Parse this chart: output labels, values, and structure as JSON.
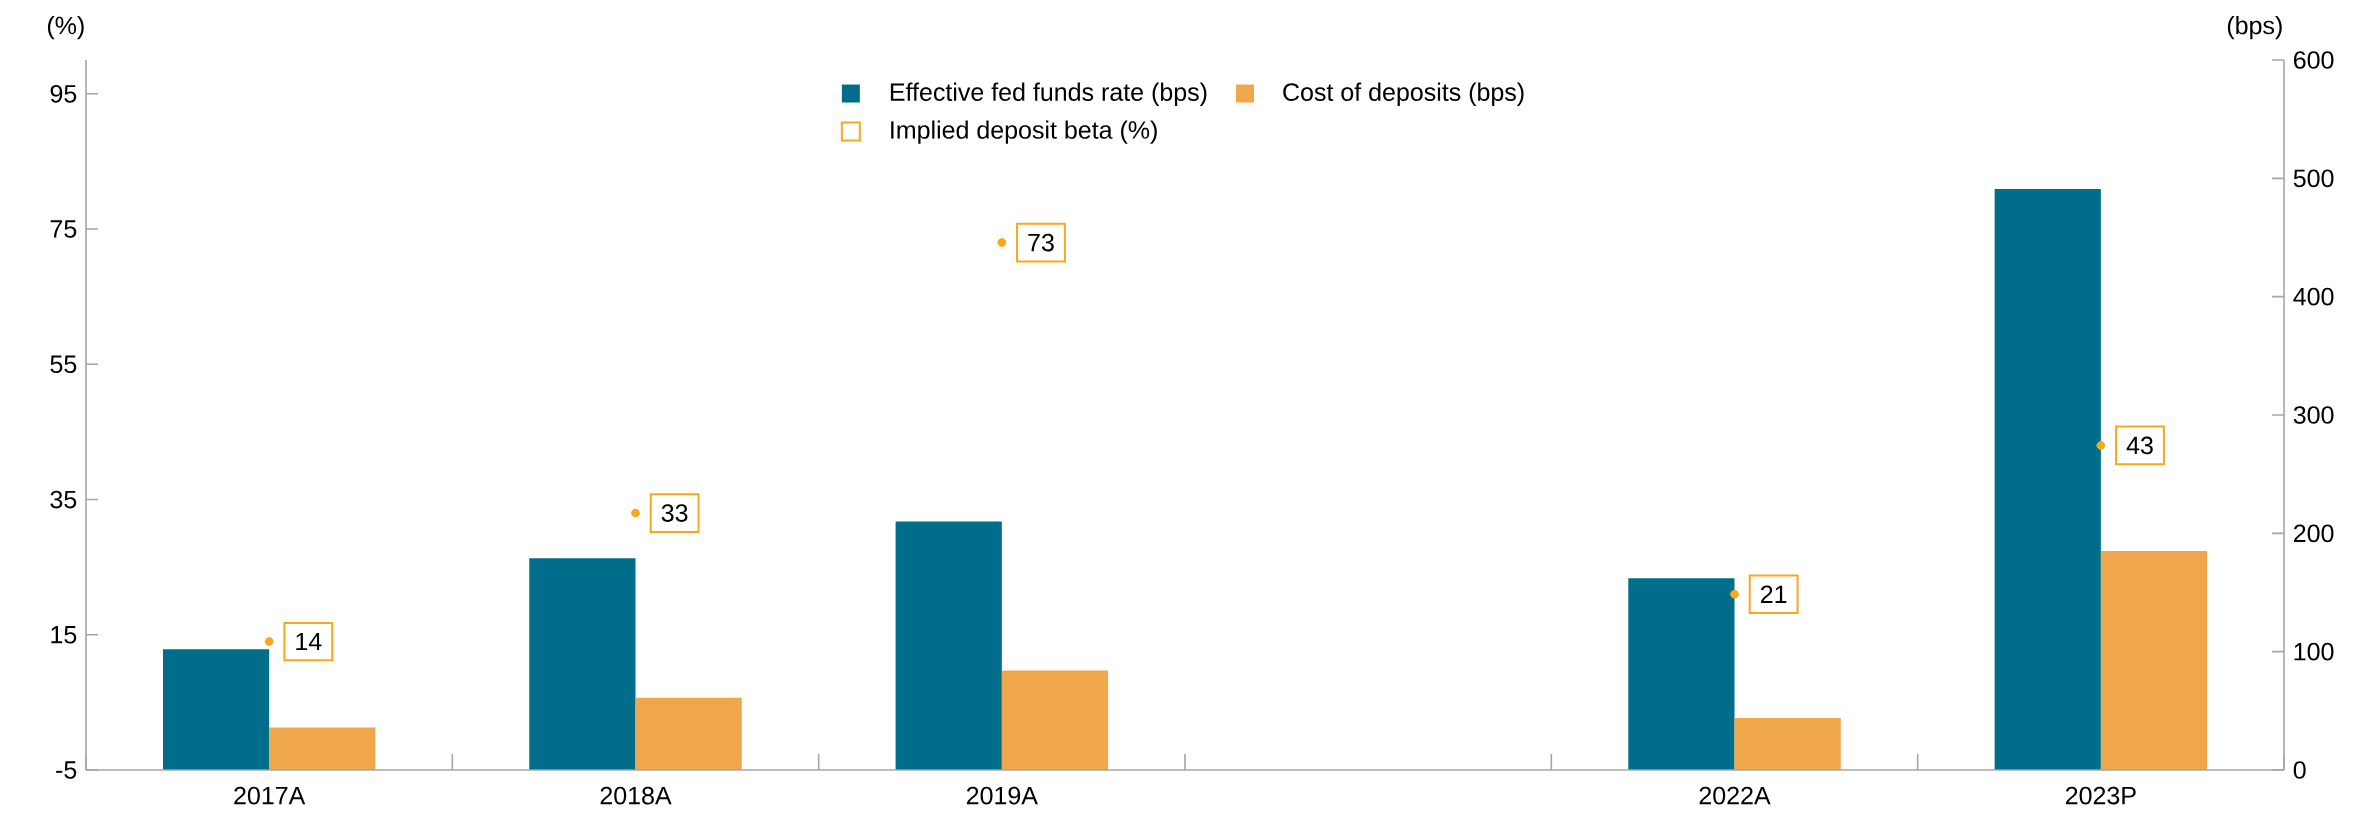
{
  "chart_data": {
    "type": "bar",
    "categories": [
      "2017A",
      "2018A",
      "2019A",
      null,
      "2022A",
      "2023P"
    ],
    "series": [
      {
        "name": "Effective fed funds rate (bps)",
        "color": "#006e8a",
        "values": [
          102,
          179,
          210,
          null,
          162,
          491
        ],
        "axis": "y2"
      },
      {
        "name": "Cost of deposits (bps)",
        "color": "#f0a64b",
        "values": [
          36,
          61,
          84,
          null,
          44,
          185
        ],
        "axis": "y2"
      },
      {
        "name": "Implied deposit beta (%)",
        "type": "scatter",
        "marker": "circle",
        "color": "#f7a81b",
        "values": [
          14,
          33,
          73,
          null,
          21,
          43
        ],
        "value_labels": [
          "14",
          "33",
          "73",
          null,
          "21",
          "43"
        ],
        "axis": "y"
      }
    ],
    "ylabel": "(%)",
    "y2label": "(bps)",
    "ylim": [
      -5,
      100
    ],
    "yticks": [
      -5,
      15,
      35,
      55,
      75,
      95
    ],
    "y2lim": [
      0,
      600
    ],
    "y2ticks": [
      0,
      100,
      200,
      300,
      400,
      500,
      600
    ],
    "legend": "top",
    "grid": false
  }
}
